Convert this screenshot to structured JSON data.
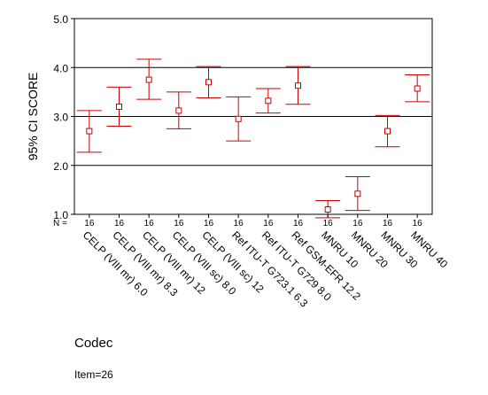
{
  "chart_data": {
    "type": "error-bar",
    "title": "",
    "xlabel": "Codec",
    "ylabel": "95% CI SCORE",
    "ylim": [
      1.0,
      5.0
    ],
    "yticks": [
      "5.0",
      "4.0",
      "3.0",
      "2.0",
      "1.0"
    ],
    "grid": "horizontal lines at 2.0, 3.0, 4.0",
    "n_label": "N =",
    "categories": [
      "CELP (VIII mr) 6.0",
      "CELP (VIII mr) 8.3",
      "CELP (VIII mr) 12",
      "CELP (VIII sc) 8.0",
      "CELP (VIII sc) 12",
      "Ref ITU-T G723.1 6.3",
      "Ref ITU-T G729 8.0",
      "Ref GSM-EFR 12.2",
      "MNRU 10",
      "MNRU 20",
      "MNRU 30",
      "MNRU 40"
    ],
    "n": [
      "16",
      "16",
      "16",
      "16",
      "16",
      "16",
      "16",
      "16",
      "16",
      "16",
      "16",
      "16"
    ],
    "series": [
      {
        "mean": [
          2.7,
          3.2,
          3.75,
          3.12,
          3.7,
          2.95,
          3.32,
          3.63,
          1.1,
          1.42,
          2.7,
          3.57
        ],
        "lower": [
          2.27,
          2.8,
          3.35,
          2.75,
          3.38,
          2.5,
          3.07,
          3.25,
          0.93,
          1.08,
          2.38,
          3.3
        ],
        "upper": [
          3.12,
          3.6,
          4.17,
          3.5,
          4.02,
          3.4,
          3.57,
          4.02,
          1.28,
          1.77,
          3.02,
          3.85
        ]
      }
    ],
    "footnote": "Item=26",
    "colors": {
      "marker": "#cc0000",
      "axis": "#000000"
    }
  }
}
